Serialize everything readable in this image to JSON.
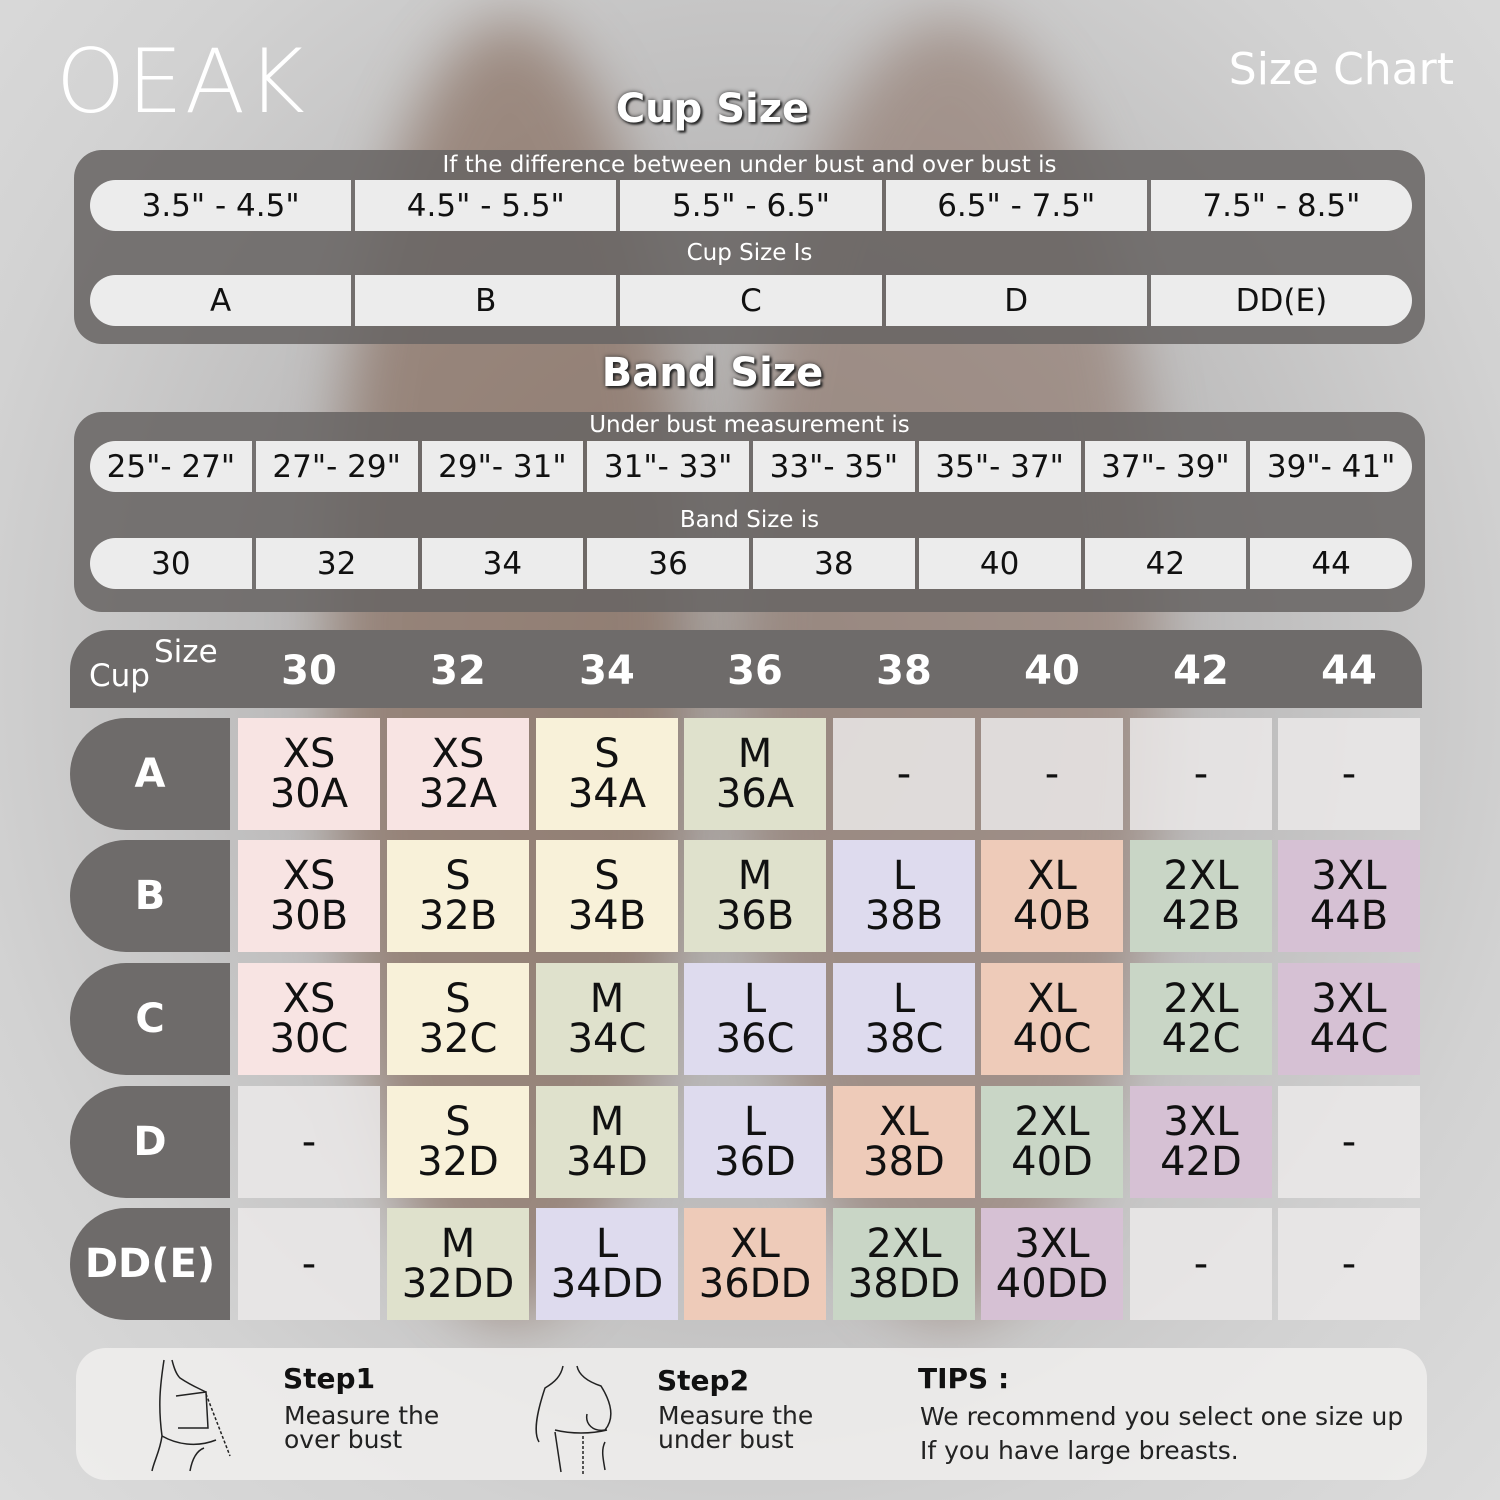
{
  "brand": "OEAK",
  "chart_title": "Size Chart",
  "cup_section": {
    "title": "Cup Size",
    "label1": "If the  difference between under bust and over bust is",
    "ranges": [
      "3.5\" -  4.5\"",
      "4.5\" -  5.5\"",
      "5.5\" -  6.5\"",
      "6.5\" -  7.5\"",
      "7.5\" -  8.5\""
    ],
    "label2": "Cup Size Is",
    "cups": [
      "A",
      "B",
      "C",
      "D",
      "DD(E)"
    ]
  },
  "band_section": {
    "title": "Band Size",
    "label1": "Under bust measurement is",
    "ranges": [
      "25\"- 27\"",
      "27\"- 29\"",
      "29\"- 31\"",
      "31\"- 33\"",
      "33\"- 35\"",
      "35\"- 37\"",
      "37\"- 39\"",
      "39\"- 41\""
    ],
    "label2": "Band Size is",
    "bands": [
      "30",
      "32",
      "34",
      "36",
      "38",
      "40",
      "42",
      "44"
    ]
  },
  "grid": {
    "size_label": "Size",
    "cup_label": "Cup",
    "columns": [
      "30",
      "32",
      "34",
      "36",
      "38",
      "40",
      "42",
      "44"
    ],
    "rows": [
      {
        "cup": "A",
        "cells": [
          [
            "XS",
            "30A"
          ],
          [
            "XS",
            "32A"
          ],
          [
            "S",
            "34A"
          ],
          [
            "M",
            "36A"
          ],
          [
            "-",
            ""
          ],
          [
            "-",
            ""
          ],
          [
            "-",
            ""
          ],
          [
            "-",
            ""
          ]
        ]
      },
      {
        "cup": "B",
        "cells": [
          [
            "XS",
            "30B"
          ],
          [
            "S",
            "32B"
          ],
          [
            "S",
            "34B"
          ],
          [
            "M",
            "36B"
          ],
          [
            "L",
            "38B"
          ],
          [
            "XL",
            "40B"
          ],
          [
            "2XL",
            "42B"
          ],
          [
            "3XL",
            "44B"
          ]
        ]
      },
      {
        "cup": "C",
        "cells": [
          [
            "XS",
            "30C"
          ],
          [
            "S",
            "32C"
          ],
          [
            "M",
            "34C"
          ],
          [
            "L",
            "36C"
          ],
          [
            "L",
            "38C"
          ],
          [
            "XL",
            "40C"
          ],
          [
            "2XL",
            "42C"
          ],
          [
            "3XL",
            "44C"
          ]
        ]
      },
      {
        "cup": "D",
        "cells": [
          [
            "-",
            ""
          ],
          [
            "S",
            "32D"
          ],
          [
            "M",
            "34D"
          ],
          [
            "L",
            "36D"
          ],
          [
            "XL",
            "38D"
          ],
          [
            "2XL",
            "40D"
          ],
          [
            "3XL",
            "42D"
          ],
          [
            "-",
            ""
          ]
        ]
      },
      {
        "cup": "DD(E)",
        "cells": [
          [
            "-",
            ""
          ],
          [
            "M",
            "32DD"
          ],
          [
            "L",
            "34DD"
          ],
          [
            "XL",
            "36DD"
          ],
          [
            "2XL",
            "38DD"
          ],
          [
            "3XL",
            "40DD"
          ],
          [
            "-",
            ""
          ],
          [
            "-",
            ""
          ]
        ]
      }
    ],
    "size_colors": {
      "XS": "#f8e4e3",
      "S": "#f8f1d9",
      "M": "#dfe1cc",
      "L": "#dedbee",
      "XL": "#eecbb9",
      "2XL": "#c9d6c6",
      "3XL": "#d6c1d4"
    }
  },
  "steps": [
    {
      "title": "Step1",
      "desc": "Measure the over bust"
    },
    {
      "title": "Step2",
      "desc": "Measure the under bust"
    }
  ],
  "tips": {
    "title": "TIPS :",
    "line1": "We recommend you select one size up",
    "line2": "If you have large breasts."
  }
}
